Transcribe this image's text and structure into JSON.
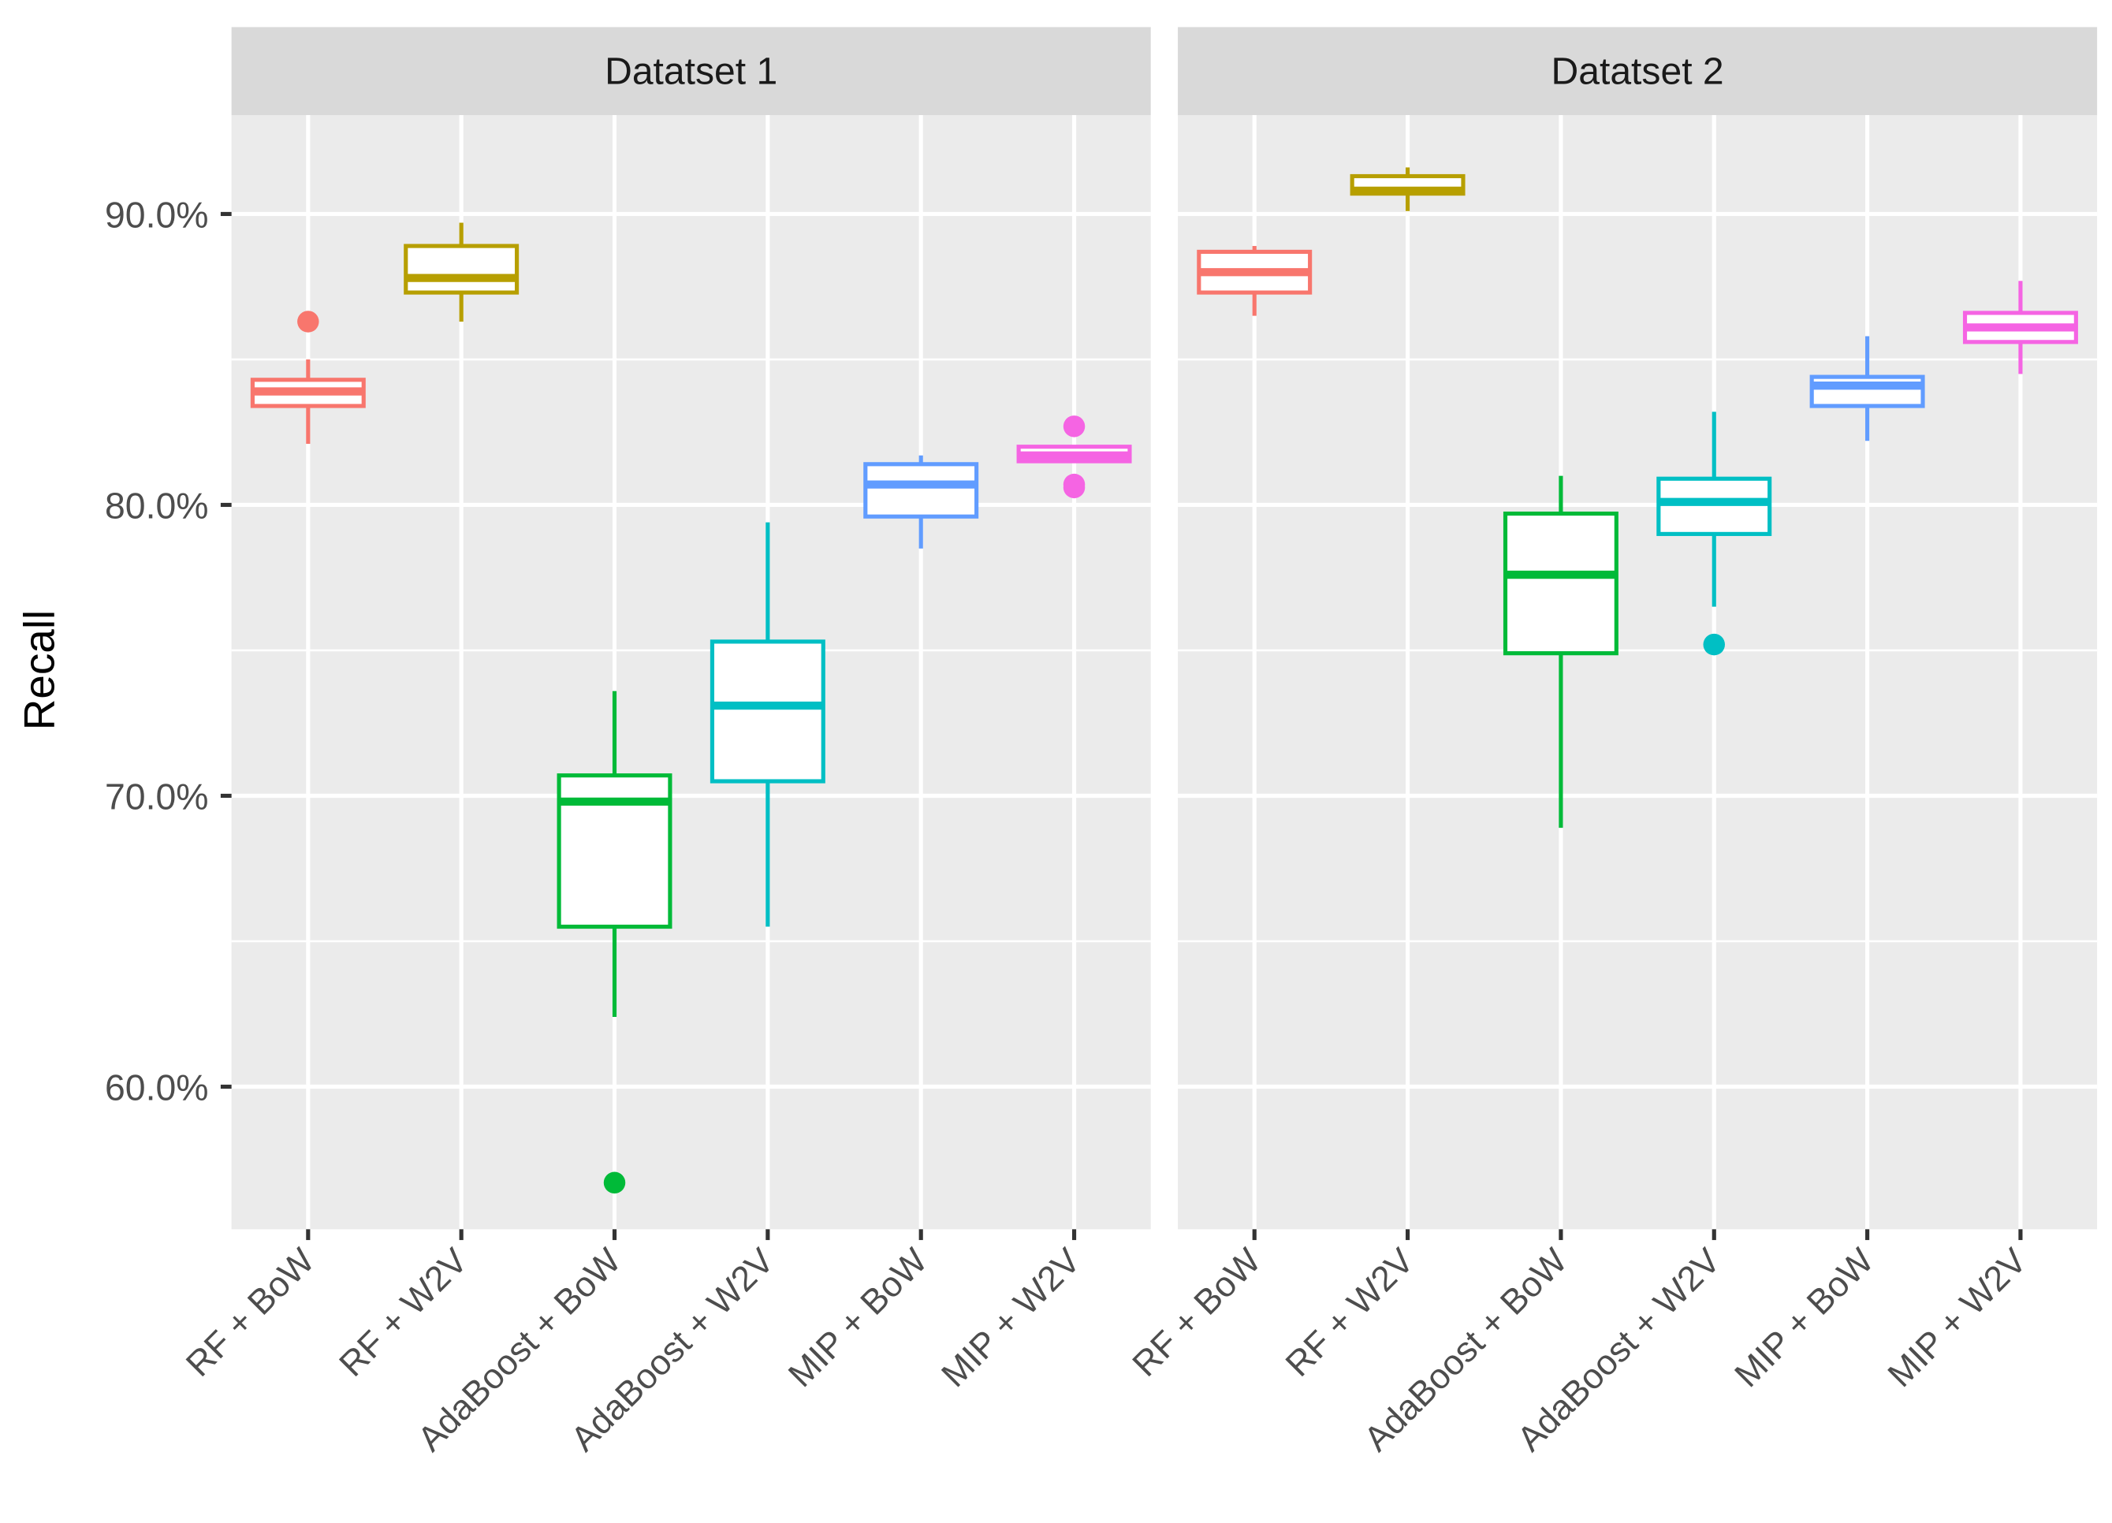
{
  "chart_data": {
    "type": "boxplot",
    "ylabel": "Recall",
    "xlabel": "",
    "ylim": [
      55.1,
      93.4
    ],
    "yticks": [
      60,
      70,
      80,
      90
    ],
    "ytick_labels": [
      "60.0%",
      "70.0%",
      "80.0%",
      "90.0%"
    ],
    "grid": true,
    "categories": [
      "RF + BoW",
      "RF + W2V",
      "AdaBoost + BoW",
      "AdaBoost + W2V",
      "MIP + BoW",
      "MIP + W2V"
    ],
    "colors": [
      "#F8766D",
      "#B79F00",
      "#00BA38",
      "#00BFC4",
      "#619CFF",
      "#F564E3"
    ],
    "panels": [
      {
        "title": "Datatset 1",
        "boxes": [
          {
            "low": 82.1,
            "q1": 83.4,
            "median": 83.9,
            "q3": 84.3,
            "high": 85.0,
            "outliers": [
              86.3
            ]
          },
          {
            "low": 86.3,
            "q1": 87.3,
            "median": 87.8,
            "q3": 88.9,
            "high": 89.7,
            "outliers": []
          },
          {
            "low": 62.4,
            "q1": 65.5,
            "median": 69.8,
            "q3": 70.7,
            "high": 73.6,
            "outliers": [
              56.7
            ]
          },
          {
            "low": 65.5,
            "q1": 70.5,
            "median": 73.1,
            "q3": 75.3,
            "high": 79.4,
            "outliers": []
          },
          {
            "low": 78.5,
            "q1": 79.6,
            "median": 80.7,
            "q3": 81.4,
            "high": 81.7,
            "outliers": []
          },
          {
            "low": 81.5,
            "q1": 81.5,
            "median": 81.7,
            "q3": 82.0,
            "high": 82.0,
            "outliers": [
              82.7,
              80.7,
              80.6
            ]
          }
        ]
      },
      {
        "title": "Datatset 2",
        "boxes": [
          {
            "low": 86.5,
            "q1": 87.3,
            "median": 88.0,
            "q3": 88.7,
            "high": 88.9,
            "outliers": []
          },
          {
            "low": 90.1,
            "q1": 90.7,
            "median": 90.8,
            "q3": 91.3,
            "high": 91.6,
            "outliers": []
          },
          {
            "low": 68.9,
            "q1": 74.9,
            "median": 77.6,
            "q3": 79.7,
            "high": 81.0,
            "outliers": []
          },
          {
            "low": 76.5,
            "q1": 79.0,
            "median": 80.1,
            "q3": 80.9,
            "high": 83.2,
            "outliers": [
              75.2
            ]
          },
          {
            "low": 82.2,
            "q1": 83.4,
            "median": 84.1,
            "q3": 84.4,
            "high": 85.8,
            "outliers": []
          },
          {
            "low": 84.5,
            "q1": 85.6,
            "median": 86.1,
            "q3": 86.6,
            "high": 87.7,
            "outliers": []
          }
        ]
      }
    ]
  }
}
